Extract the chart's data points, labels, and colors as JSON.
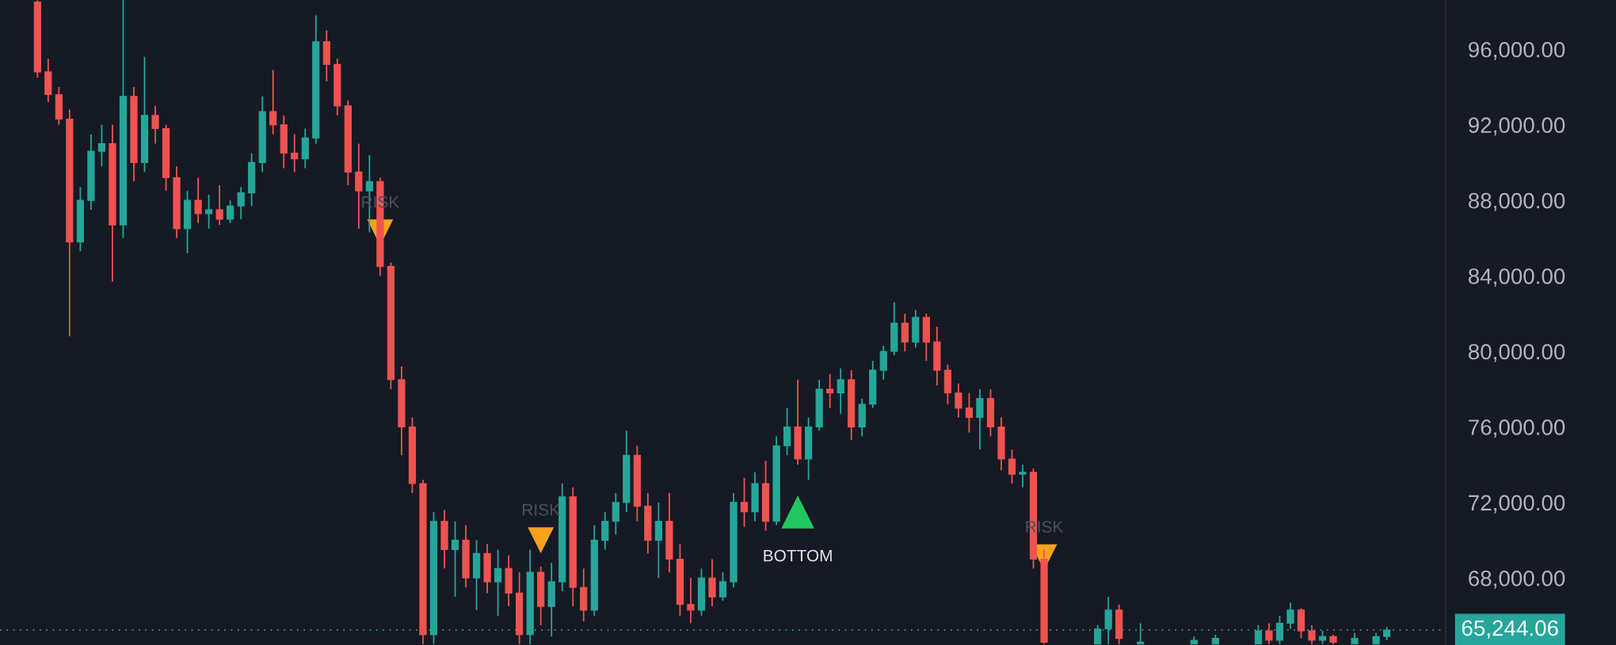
{
  "chart_data": {
    "type": "candlestick",
    "categories": [
      null,
      null,
      null,
      null,
      null,
      null,
      null,
      null,
      null,
      null,
      null,
      null,
      null,
      null,
      null,
      null,
      null,
      null,
      null,
      null,
      null,
      null,
      null,
      null,
      null,
      null,
      null,
      null,
      null,
      null,
      null,
      null,
      null,
      null,
      null,
      null,
      null,
      null,
      null,
      null,
      null,
      null,
      null,
      null,
      null,
      null,
      null,
      null,
      null,
      null,
      null,
      null,
      null,
      null,
      null,
      null,
      null,
      null,
      null,
      null,
      null,
      null,
      null,
      null,
      null,
      null,
      null,
      null,
      null,
      null,
      null,
      null,
      null,
      null,
      null,
      null,
      null,
      null,
      null,
      null,
      null,
      null,
      null,
      null,
      null,
      null,
      null,
      null,
      null,
      null,
      null,
      null,
      null,
      null,
      null,
      null,
      null,
      null,
      null,
      null,
      null,
      null,
      null,
      null,
      null,
      null,
      null,
      null,
      null,
      null,
      null,
      null,
      null,
      null,
      null,
      null,
      null,
      null,
      null,
      null,
      null,
      null,
      null,
      null,
      null,
      null,
      null
    ],
    "ohlc": [
      [
        98500,
        98600,
        94500,
        94800
      ],
      [
        94800,
        95500,
        93200,
        93600
      ],
      [
        93600,
        94000,
        92000,
        92300
      ],
      [
        92300,
        92800,
        80800,
        85800
      ],
      [
        85800,
        88700,
        85300,
        88000
      ],
      [
        88000,
        91500,
        87500,
        90600
      ],
      [
        90600,
        92000,
        89800,
        91000
      ],
      [
        91000,
        92000,
        83700,
        86700
      ],
      [
        86700,
        98600,
        86000,
        93500
      ],
      [
        93500,
        94000,
        89000,
        90000
      ],
      [
        90000,
        95600,
        89500,
        92500
      ],
      [
        92500,
        93000,
        91000,
        91800
      ],
      [
        91800,
        92000,
        88500,
        89200
      ],
      [
        89200,
        89800,
        86000,
        86500
      ],
      [
        86500,
        88500,
        85200,
        88000
      ],
      [
        88000,
        89200,
        86800,
        87300
      ],
      [
        87300,
        88300,
        86500,
        87500
      ],
      [
        87500,
        88800,
        86700,
        87000
      ],
      [
        87000,
        88000,
        86800,
        87700
      ],
      [
        87700,
        88700,
        87000,
        88400
      ],
      [
        88400,
        90500,
        87700,
        90000
      ],
      [
        90000,
        93500,
        89500,
        92700
      ],
      [
        92700,
        94900,
        91500,
        92000
      ],
      [
        92000,
        92500,
        89700,
        90500
      ],
      [
        90500,
        91500,
        89500,
        90200
      ],
      [
        90200,
        91800,
        89700,
        91300
      ],
      [
        91300,
        97800,
        91000,
        96400
      ],
      [
        96400,
        97000,
        94300,
        95200
      ],
      [
        95200,
        95500,
        92500,
        93000
      ],
      [
        93000,
        93300,
        88800,
        89500
      ],
      [
        89500,
        91000,
        86500,
        88500
      ],
      [
        88500,
        90400,
        86300,
        89000
      ],
      [
        89000,
        89200,
        84000,
        84500
      ],
      [
        84500,
        84700,
        78000,
        78500
      ],
      [
        78500,
        79200,
        74500,
        76000
      ],
      [
        76000,
        76500,
        72500,
        73000
      ],
      [
        73000,
        73200,
        64500,
        65000
      ],
      [
        65000,
        71500,
        64500,
        71000
      ],
      [
        71000,
        71600,
        68500,
        69500
      ],
      [
        69500,
        71000,
        67000,
        70000
      ],
      [
        70000,
        70800,
        67500,
        68000
      ],
      [
        68000,
        70000,
        66300,
        69300
      ],
      [
        69300,
        69800,
        67200,
        67800
      ],
      [
        67800,
        69500,
        66000,
        68500
      ],
      [
        68500,
        69200,
        66500,
        67200
      ],
      [
        67200,
        68300,
        64500,
        65000
      ],
      [
        65000,
        69500,
        64500,
        68300
      ],
      [
        68300,
        68600,
        65500,
        66500
      ],
      [
        66500,
        68800,
        64900,
        67800
      ],
      [
        67800,
        73000,
        67300,
        72300
      ],
      [
        72300,
        72800,
        66500,
        67500
      ],
      [
        67500,
        68500,
        65700,
        66300
      ],
      [
        66300,
        70800,
        66000,
        70000
      ],
      [
        70000,
        71500,
        69500,
        71000
      ],
      [
        71000,
        72500,
        70300,
        72000
      ],
      [
        72000,
        75800,
        71500,
        74500
      ],
      [
        74500,
        75000,
        71000,
        71800
      ],
      [
        71800,
        72500,
        69300,
        70000
      ],
      [
        70000,
        72000,
        68000,
        71000
      ],
      [
        71000,
        72500,
        68300,
        69000
      ],
      [
        69000,
        69800,
        66000,
        66600
      ],
      [
        66600,
        68000,
        65600,
        66300
      ],
      [
        66300,
        68500,
        66000,
        68000
      ],
      [
        68000,
        69000,
        66500,
        67000
      ],
      [
        67000,
        68300,
        66800,
        67800
      ],
      [
        67800,
        72500,
        67500,
        72000
      ],
      [
        72000,
        73300,
        70700,
        71500
      ],
      [
        71500,
        73600,
        71000,
        73000
      ],
      [
        73000,
        74200,
        70500,
        71000
      ],
      [
        71000,
        75500,
        70800,
        75000
      ],
      [
        75000,
        77000,
        74500,
        76000
      ],
      [
        76000,
        78500,
        74000,
        74300
      ],
      [
        74300,
        76500,
        73200,
        76000
      ],
      [
        76000,
        78500,
        75800,
        78000
      ],
      [
        78000,
        78800,
        77000,
        77800
      ],
      [
        77800,
        79100,
        76700,
        78500
      ],
      [
        78500,
        79000,
        75300,
        76000
      ],
      [
        76000,
        77500,
        75500,
        77200
      ],
      [
        77200,
        79500,
        77000,
        79000
      ],
      [
        79000,
        80300,
        78500,
        80000
      ],
      [
        80000,
        82600,
        79800,
        81500
      ],
      [
        81500,
        82000,
        80000,
        80500
      ],
      [
        80500,
        82200,
        80200,
        81800
      ],
      [
        81800,
        82000,
        79500,
        80500
      ],
      [
        80500,
        81300,
        78200,
        79000
      ],
      [
        79000,
        79300,
        77200,
        77800
      ],
      [
        77800,
        78300,
        76500,
        77000
      ],
      [
        77000,
        77800,
        75700,
        76500
      ],
      [
        76500,
        78000,
        74800,
        77500
      ],
      [
        77500,
        78000,
        75500,
        76000
      ],
      [
        76000,
        76500,
        73700,
        74300
      ],
      [
        74300,
        74800,
        73000,
        73500
      ],
      [
        73500,
        74000,
        72800,
        73600
      ],
      [
        73600,
        73800,
        68500,
        69000
      ],
      [
        69000,
        69500,
        64500,
        64600
      ],
      null,
      null,
      null,
      null,
      [
        64500,
        65500,
        64500,
        65300
      ],
      [
        65300,
        67000,
        64500,
        66300
      ],
      [
        66300,
        66600,
        64500,
        64800
      ],
      null,
      [
        64500,
        65600,
        64500,
        64600
      ],
      null,
      null,
      null,
      null,
      [
        64500,
        64900,
        64500,
        64700
      ],
      null,
      [
        64500,
        65000,
        64500,
        64800
      ],
      null,
      null,
      null,
      [
        64500,
        65500,
        64500,
        65200
      ],
      [
        65200,
        65600,
        64500,
        64700
      ],
      [
        64700,
        66000,
        64500,
        65600
      ],
      [
        65600,
        66700,
        65300,
        66300
      ],
      [
        66300,
        66400,
        64800,
        65200
      ],
      [
        65200,
        65500,
        64500,
        64700
      ],
      [
        64700,
        65200,
        64500,
        64900
      ],
      [
        64900,
        65000,
        64500,
        64600
      ],
      null,
      [
        64500,
        65100,
        64500,
        64800
      ],
      null,
      [
        64500,
        65100,
        64500,
        64900
      ],
      [
        64900,
        65400,
        64700,
        65244.06
      ]
    ],
    "colors": [
      "#ef5350",
      "#ef5350",
      "#ef5350",
      "#ef5350",
      "#26a69a",
      "#26a69a",
      "#26a69a",
      "#ef5350",
      "#26a69a",
      "#ef5350",
      "#26a69a",
      "#ef5350",
      "#ef5350",
      "#ef5350",
      "#26a69a",
      "#ef5350",
      "#26a69a",
      "#ef5350",
      "#26a69a",
      "#26a69a",
      "#26a69a",
      "#26a69a",
      "#ef5350",
      "#ef5350",
      "#ef5350",
      "#26a69a",
      "#26a69a",
      "#ef5350",
      "#ef5350",
      "#ef5350",
      "#ef5350",
      "#26a69a",
      "#ef5350",
      "#ef5350",
      "#ef5350",
      "#ef5350",
      "#ef5350",
      "#26a69a",
      "#ef5350",
      "#26a69a",
      "#ef5350",
      "#26a69a",
      "#ef5350",
      "#26a69a",
      "#ef5350",
      "#ef5350",
      "#26a69a",
      "#ef5350",
      "#26a69a",
      "#26a69a",
      "#ef5350",
      "#ef5350",
      "#26a69a",
      "#26a69a",
      "#26a69a",
      "#26a69a",
      "#ef5350",
      "#ef5350",
      "#26a69a",
      "#ef5350",
      "#ef5350",
      "#ef5350",
      "#26a69a",
      "#ef5350",
      "#26a69a",
      "#26a69a",
      "#ef5350",
      "#26a69a",
      "#ef5350",
      "#26a69a",
      "#26a69a",
      "#ef5350",
      "#26a69a",
      "#26a69a",
      "#ef5350",
      "#26a69a",
      "#ef5350",
      "#26a69a",
      "#26a69a",
      "#26a69a",
      "#26a69a",
      "#ef5350",
      "#26a69a",
      "#ef5350",
      "#ef5350",
      "#ef5350",
      "#ef5350",
      "#ef5350",
      "#26a69a",
      "#ef5350",
      "#ef5350",
      "#ef5350",
      "#26a69a",
      "#ef5350",
      "#ef5350",
      null,
      null,
      null,
      null,
      "#26a69a",
      "#26a69a",
      "#ef5350",
      null,
      "#26a69a",
      null,
      null,
      null,
      null,
      "#26a69a",
      null,
      "#26a69a",
      null,
      null,
      null,
      "#26a69a",
      "#ef5350",
      "#26a69a",
      "#26a69a",
      "#ef5350",
      "#ef5350",
      "#26a69a",
      "#ef5350",
      null,
      "#26a69a",
      null,
      "#26a69a",
      "#26a69a"
    ],
    "series": [
      {
        "name": "RISK",
        "type": "scatter",
        "marker": "triangle-down",
        "color": "#f7a21b",
        "values": [
          null,
          null,
          null,
          null,
          null,
          null,
          null,
          null,
          null,
          null,
          null,
          null,
          null,
          null,
          null,
          null,
          null,
          null,
          null,
          null,
          null,
          null,
          null,
          null,
          null,
          null,
          null,
          null,
          null,
          null,
          null,
          null,
          86300,
          null,
          null,
          null,
          null,
          null,
          null,
          null,
          null,
          null,
          null,
          null,
          null,
          null,
          null,
          70000,
          null,
          null,
          null,
          null,
          null,
          null,
          null,
          null,
          null,
          null,
          null,
          null,
          null,
          null,
          null,
          null,
          null,
          null,
          null,
          null,
          null,
          null,
          null,
          null,
          null,
          null,
          null,
          null,
          null,
          null,
          null,
          null,
          null,
          null,
          null,
          null,
          null,
          null,
          null,
          null,
          null,
          null,
          null,
          null,
          null,
          null,
          69100,
          null,
          null,
          null,
          null,
          null,
          null,
          null,
          null,
          null,
          null,
          null,
          null,
          null,
          null,
          null,
          null,
          null,
          null,
          null,
          null,
          null,
          null,
          null,
          null,
          null,
          null,
          null,
          null,
          null,
          null,
          null,
          null
        ]
      },
      {
        "name": "BOTTOM",
        "type": "scatter",
        "marker": "triangle",
        "color": "#22c55e",
        "values": [
          null,
          null,
          null,
          null,
          null,
          null,
          null,
          null,
          null,
          null,
          null,
          null,
          null,
          null,
          null,
          null,
          null,
          null,
          null,
          null,
          null,
          null,
          null,
          null,
          null,
          null,
          null,
          null,
          null,
          null,
          null,
          null,
          null,
          null,
          null,
          null,
          null,
          null,
          null,
          null,
          null,
          null,
          null,
          null,
          null,
          null,
          null,
          null,
          null,
          null,
          null,
          null,
          null,
          null,
          null,
          null,
          null,
          null,
          null,
          null,
          null,
          null,
          null,
          null,
          null,
          null,
          null,
          null,
          null,
          null,
          null,
          71500,
          null,
          null,
          null,
          null,
          null,
          null,
          null,
          null,
          null,
          null,
          null,
          null,
          null,
          null,
          null,
          null,
          null,
          null,
          null,
          null,
          null,
          null,
          null,
          null,
          null,
          null,
          null,
          null,
          null,
          null,
          null,
          null,
          null,
          null,
          null,
          null,
          null,
          null,
          null,
          null,
          null,
          null,
          null,
          null,
          null,
          null,
          null,
          null,
          null,
          null,
          null,
          null,
          null,
          null,
          null
        ]
      }
    ],
    "ylim": [
      64450,
      98610
    ],
    "yticks": [
      {
        "value": 68000,
        "label": "68,000.00"
      },
      {
        "value": 72000,
        "label": "72,000.00"
      },
      {
        "value": 76000,
        "label": "76,000.00"
      },
      {
        "value": 80000,
        "label": "80,000.00"
      },
      {
        "value": 84000,
        "label": "84,000.00"
      },
      {
        "value": 88000,
        "label": "88,000.00"
      },
      {
        "value": 92000,
        "label": "92,000.00"
      },
      {
        "value": 96000,
        "label": "96,000.00"
      }
    ],
    "ref_lines": [
      {
        "axis": "y",
        "value": 65244.06,
        "label": "65,244.06",
        "color": "#26a69a",
        "line_style": "dotted"
      }
    ],
    "grid": false,
    "legend": false
  }
}
